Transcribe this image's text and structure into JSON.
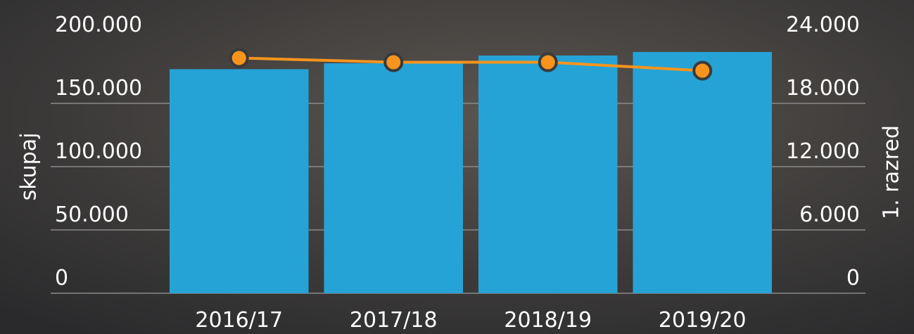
{
  "chart_data": {
    "type": "bar-line",
    "categories": [
      "2016/17",
      "2017/18",
      "2018/19",
      "2019/20"
    ],
    "series": [
      {
        "name": "skupaj",
        "type": "bar",
        "color": "#25a3d6",
        "values": [
          177000,
          181700,
          187800,
          190600
        ]
      },
      {
        "name": "1. razred",
        "type": "line",
        "axis": "y2",
        "color": "#f7941d",
        "values": [
          22300,
          21900,
          21900,
          21100
        ]
      }
    ],
    "ylim": [
      0,
      200000
    ],
    "yticks": [
      0,
      {
        "value": 50000,
        "label": "50.000"
      },
      {
        "value": 100000,
        "label": "100.000"
      },
      {
        "value": 150000,
        "label": "150.000"
      },
      {
        "value": 200000,
        "label": "200.000"
      }
    ],
    "y2lim": [
      0,
      24000
    ],
    "y2ticks": [
      0,
      {
        "value": 6000,
        "label": "6.000"
      },
      {
        "value": 12000,
        "label": "12.000"
      },
      {
        "value": 18000,
        "label": "18.000"
      },
      {
        "value": 24000,
        "label": "24.000"
      }
    ],
    "grid": true
  }
}
